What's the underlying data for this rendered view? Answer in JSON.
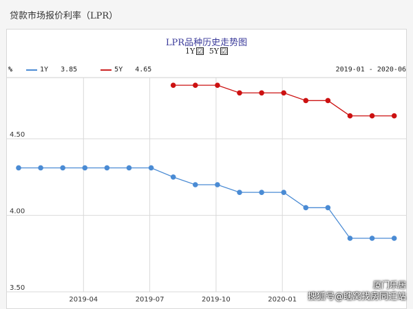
{
  "page_title": "贷款市场报价利率（LPR）",
  "chart_title": "LPR品种历史走势图",
  "toggles": [
    {
      "label": "1Y",
      "checked": "☑"
    },
    {
      "label": "5Y",
      "checked": "☑"
    }
  ],
  "legend": {
    "unit": "%",
    "items": [
      {
        "name": "1Y",
        "value": "3.85",
        "color": "#4a8bd4"
      },
      {
        "name": "5Y",
        "value": "4.65",
        "color": "#cc2222"
      }
    ]
  },
  "date_range": "2019-01 - 2020-06",
  "watermark": {
    "line1": "厦门乐居",
    "line2": "搜狐号@瞎窝找房同迁站"
  },
  "chart_data": {
    "type": "line",
    "title": "LPR品种历史走势图",
    "ylabel": "%",
    "ylim": [
      3.5,
      4.9
    ],
    "yticks": [
      3.5,
      4.0,
      4.5
    ],
    "ytick_labels": [
      "3.50",
      "4.00",
      "4.50"
    ],
    "x": [
      "2019-01",
      "2019-02",
      "2019-03",
      "2019-04",
      "2019-05",
      "2019-06",
      "2019-07",
      "2019-08",
      "2019-09",
      "2019-10",
      "2019-11",
      "2019-12",
      "2020-01",
      "2020-02",
      "2020-03",
      "2020-04",
      "2020-05",
      "2020-06"
    ],
    "xticks": [
      "2019-04",
      "2019-07",
      "2019-10",
      "2020-01"
    ],
    "series": [
      {
        "name": "1Y",
        "color": "#4a8bd4",
        "values": [
          4.31,
          4.31,
          4.31,
          4.31,
          4.31,
          4.31,
          4.31,
          4.25,
          4.2,
          4.2,
          4.15,
          4.15,
          4.15,
          4.05,
          4.05,
          3.85,
          3.85,
          3.85
        ]
      },
      {
        "name": "5Y",
        "color": "#cc1111",
        "values": [
          null,
          null,
          null,
          null,
          null,
          null,
          null,
          4.85,
          4.85,
          4.85,
          4.8,
          4.8,
          4.8,
          4.75,
          4.75,
          4.65,
          4.65,
          4.65
        ]
      }
    ]
  }
}
